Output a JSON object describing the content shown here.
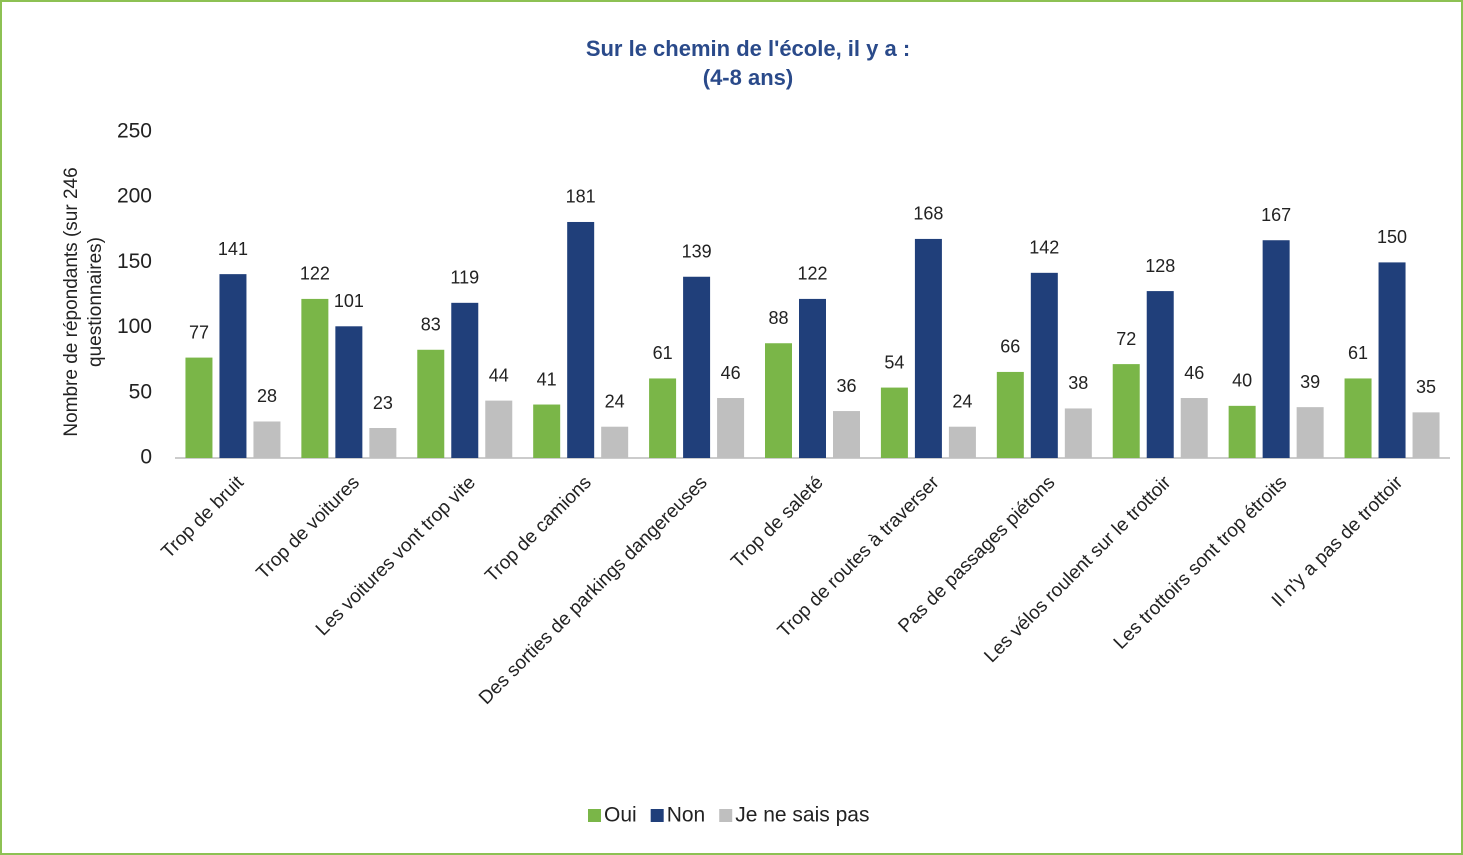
{
  "chart_data": {
    "type": "bar",
    "title": "Sur le chemin de l'école, il y a :",
    "subtitle": "(4-8 ans)",
    "ylabel": [
      "Nombre de répondants (sur 246",
      "questionnaires)"
    ],
    "categories": [
      "Trop de bruit",
      "Trop de voitures",
      "Les voitures vont trop vite",
      "Trop de camions",
      "Des sorties de parkings dangereuses",
      "Trop de saleté",
      "Trop de routes à traverser",
      "Pas de passages piétons",
      "Les vélos roulent sur le trottoir",
      "Les trottoirs sont trop étroits",
      "Il n'y a pas de trottoir"
    ],
    "series": [
      {
        "name": "Oui",
        "color": "#7ab648",
        "values": [
          77,
          122,
          83,
          41,
          61,
          88,
          54,
          66,
          72,
          40,
          61
        ]
      },
      {
        "name": "Non",
        "color": "#203f7a",
        "values": [
          141,
          101,
          119,
          181,
          139,
          122,
          168,
          142,
          128,
          167,
          150
        ]
      },
      {
        "name": "Je ne sais pas",
        "color": "#bfbfbf",
        "values": [
          28,
          23,
          44,
          24,
          46,
          36,
          24,
          38,
          46,
          39,
          35
        ]
      }
    ],
    "ylim": [
      0,
      250
    ],
    "yticks": [
      0,
      50,
      100,
      150,
      200,
      250
    ],
    "grid": false,
    "legend": "bottom"
  }
}
